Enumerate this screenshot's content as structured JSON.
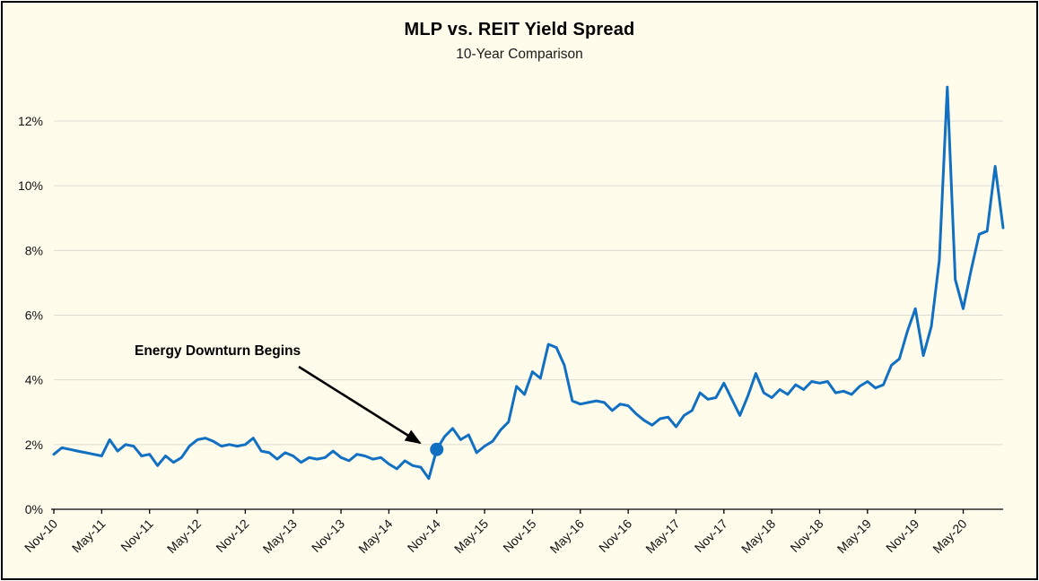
{
  "chart_data": {
    "type": "line",
    "title": "MLP vs. REIT Yield Spread",
    "subtitle": "10-Year Comparison",
    "series_name": "MLP vs REIT yield spread",
    "x": [
      "Nov-10",
      "Dec-10",
      "Jan-11",
      "Feb-11",
      "Mar-11",
      "Apr-11",
      "May-11",
      "Jun-11",
      "Jul-11",
      "Aug-11",
      "Sep-11",
      "Oct-11",
      "Nov-11",
      "Dec-11",
      "Jan-12",
      "Feb-12",
      "Mar-12",
      "Apr-12",
      "May-12",
      "Jun-12",
      "Jul-12",
      "Aug-12",
      "Sep-12",
      "Oct-12",
      "Nov-12",
      "Dec-12",
      "Jan-13",
      "Feb-13",
      "Mar-13",
      "Apr-13",
      "May-13",
      "Jun-13",
      "Jul-13",
      "Aug-13",
      "Sep-13",
      "Oct-13",
      "Nov-13",
      "Dec-13",
      "Jan-14",
      "Feb-14",
      "Mar-14",
      "Apr-14",
      "May-14",
      "Jun-14",
      "Jul-14",
      "Aug-14",
      "Sep-14",
      "Oct-14",
      "Nov-14",
      "Dec-14",
      "Jan-15",
      "Feb-15",
      "Mar-15",
      "Apr-15",
      "May-15",
      "Jun-15",
      "Jul-15",
      "Aug-15",
      "Sep-15",
      "Oct-15",
      "Nov-15",
      "Dec-15",
      "Jan-16",
      "Feb-16",
      "Mar-16",
      "Apr-16",
      "May-16",
      "Jun-16",
      "Jul-16",
      "Aug-16",
      "Sep-16",
      "Oct-16",
      "Nov-16",
      "Dec-16",
      "Jan-17",
      "Feb-17",
      "Mar-17",
      "Apr-17",
      "May-17",
      "Jun-17",
      "Jul-17",
      "Aug-17",
      "Sep-17",
      "Oct-17",
      "Nov-17",
      "Dec-17",
      "Jan-18",
      "Feb-18",
      "Mar-18",
      "Apr-18",
      "May-18",
      "Jun-18",
      "Jul-18",
      "Aug-18",
      "Sep-18",
      "Oct-18",
      "Nov-18",
      "Dec-18",
      "Jan-19",
      "Feb-19",
      "Mar-19",
      "Apr-19",
      "May-19",
      "Jun-19",
      "Jul-19",
      "Aug-19",
      "Sep-19",
      "Oct-19",
      "Nov-19",
      "Dec-19",
      "Jan-20",
      "Feb-20",
      "Mar-20",
      "Apr-20",
      "May-20",
      "Jun-20",
      "Jul-20",
      "Aug-20",
      "Sep-20",
      "Oct-20"
    ],
    "values": [
      1.7,
      1.9,
      1.85,
      1.8,
      1.75,
      1.7,
      1.65,
      2.15,
      1.8,
      2.0,
      1.95,
      1.65,
      1.7,
      1.35,
      1.65,
      1.45,
      1.6,
      1.95,
      2.15,
      2.2,
      2.1,
      1.95,
      2.0,
      1.95,
      2.0,
      2.2,
      1.8,
      1.75,
      1.55,
      1.75,
      1.65,
      1.45,
      1.6,
      1.55,
      1.6,
      1.8,
      1.6,
      1.5,
      1.7,
      1.65,
      1.55,
      1.6,
      1.4,
      1.25,
      1.5,
      1.35,
      1.3,
      0.95,
      1.85,
      2.25,
      2.5,
      2.15,
      2.3,
      1.75,
      1.95,
      2.1,
      2.45,
      2.7,
      3.8,
      3.55,
      4.25,
      4.05,
      5.1,
      5.0,
      4.45,
      3.35,
      3.25,
      3.3,
      3.35,
      3.3,
      3.05,
      3.25,
      3.2,
      2.95,
      2.75,
      2.6,
      2.8,
      2.85,
      2.55,
      2.9,
      3.05,
      3.6,
      3.4,
      3.45,
      3.9,
      3.4,
      2.9,
      3.5,
      4.2,
      3.6,
      3.45,
      3.7,
      3.55,
      3.85,
      3.7,
      3.95,
      3.9,
      3.95,
      3.6,
      3.65,
      3.55,
      3.8,
      3.95,
      3.75,
      3.85,
      4.45,
      4.65,
      5.5,
      6.2,
      4.75,
      5.65,
      7.7,
      13.05,
      7.1,
      6.2,
      7.4,
      8.5,
      8.6,
      10.6,
      8.7
    ],
    "x_tick_every": 6,
    "x_tick_labels": [
      "Nov-10",
      "May-11",
      "Nov-11",
      "May-12",
      "Nov-12",
      "May-13",
      "Nov-13",
      "May-14",
      "Nov-14",
      "May-15",
      "Nov-15",
      "May-16",
      "Nov-16",
      "May-17",
      "Nov-17",
      "May-18",
      "Nov-18",
      "May-19",
      "Nov-19",
      "May-20"
    ],
    "yticks": [
      0,
      2,
      4,
      6,
      8,
      10,
      12
    ],
    "ytick_labels": [
      "0%",
      "2%",
      "4%",
      "6%",
      "8%",
      "10%",
      "12%"
    ],
    "ylim": [
      0,
      13.5
    ],
    "grid": true,
    "legend_position": "none",
    "annotation": {
      "text": "Energy Downturn Begins",
      "target_label": "Nov-14",
      "target_index": 48,
      "target_value": 1.85
    },
    "colors": {
      "line": "#1170C1",
      "marker": "#1170C1",
      "background": "#FFFCEC",
      "gridline": "#DBDBD3",
      "axis": "#000000",
      "arrow": "#000000"
    }
  }
}
